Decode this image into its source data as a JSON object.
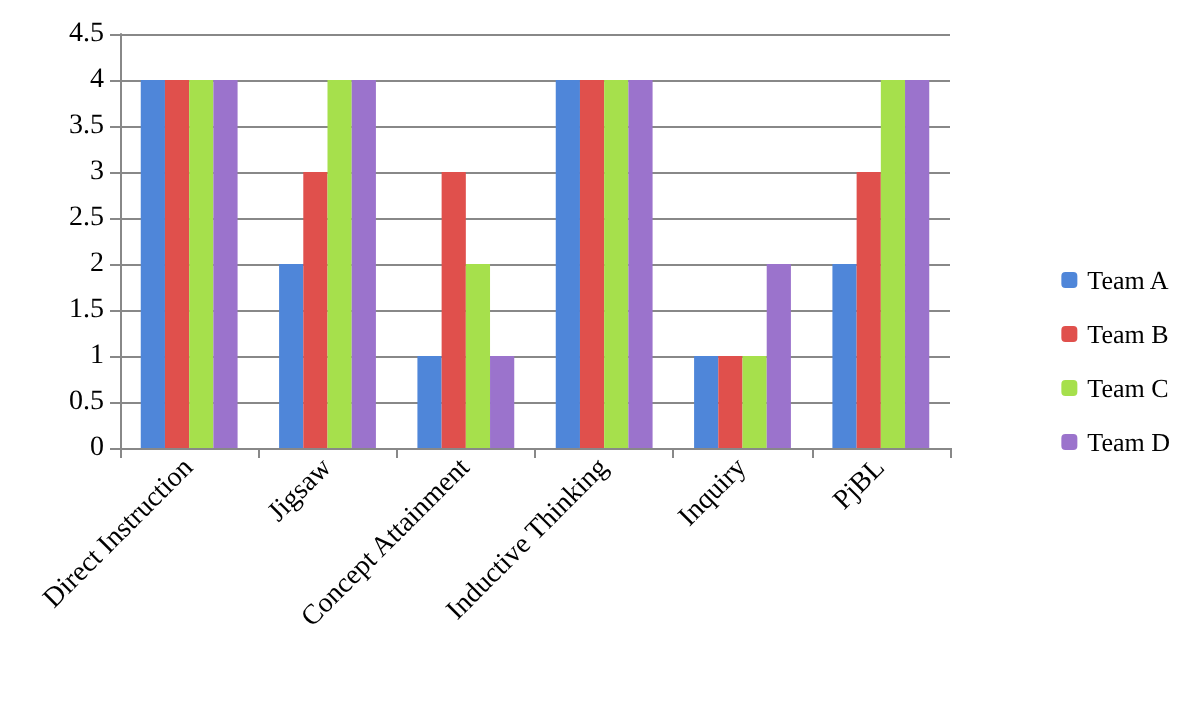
{
  "chart_data": {
    "type": "bar",
    "categories": [
      "Direct Instruction",
      "Jigsaw",
      "Concept Attainment",
      "Inductive Thinking",
      "Inquiry",
      "PjBL"
    ],
    "series": [
      {
        "name": "Team A",
        "color": "#4f86d9",
        "values": [
          4,
          2,
          1,
          4,
          1,
          2
        ]
      },
      {
        "name": "Team B",
        "color": "#e0504c",
        "values": [
          4,
          3,
          3,
          4,
          1,
          3
        ]
      },
      {
        "name": "Team C",
        "color": "#a6e04c",
        "values": [
          4,
          4,
          2,
          4,
          1,
          4
        ]
      },
      {
        "name": "Team D",
        "color": "#9b73cc",
        "values": [
          4,
          4,
          1,
          4,
          2,
          4
        ]
      }
    ],
    "ylim": [
      0,
      4.5
    ],
    "yticks": [
      0,
      0.5,
      1,
      1.5,
      2,
      2.5,
      3,
      3.5,
      4,
      4.5
    ],
    "grid": "y",
    "legend": "right"
  }
}
